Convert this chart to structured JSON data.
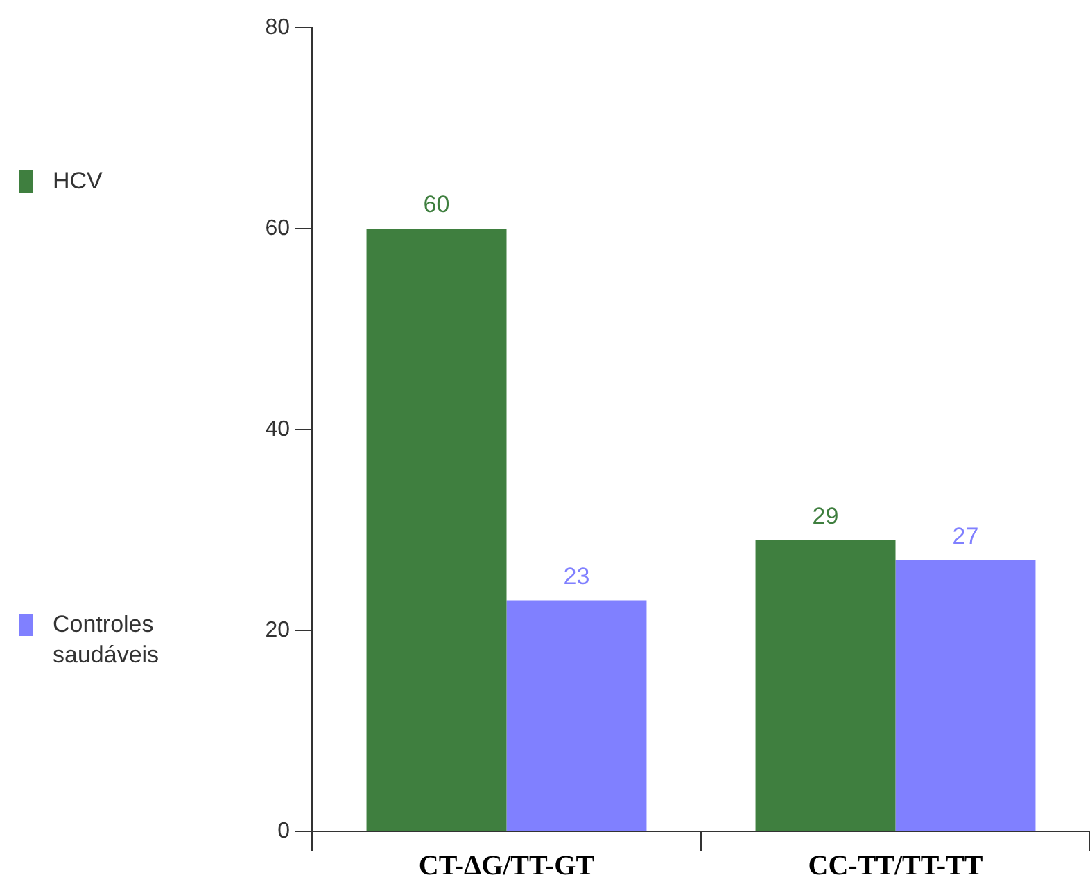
{
  "chart_data": {
    "type": "bar",
    "categories": [
      "CT-ΔG/TT-GT",
      "CC-TT/TT-TT"
    ],
    "series": [
      {
        "name": "HCV",
        "color": "#3f7f3f",
        "values": [
          60,
          29
        ]
      },
      {
        "name": "Controles saudáveis",
        "color": "#8080ff",
        "values": [
          23,
          27
        ]
      }
    ],
    "ylim": [
      0,
      80
    ],
    "yticks": [
      0,
      20,
      40,
      60,
      80
    ],
    "data_labels": true,
    "legend": "left"
  }
}
